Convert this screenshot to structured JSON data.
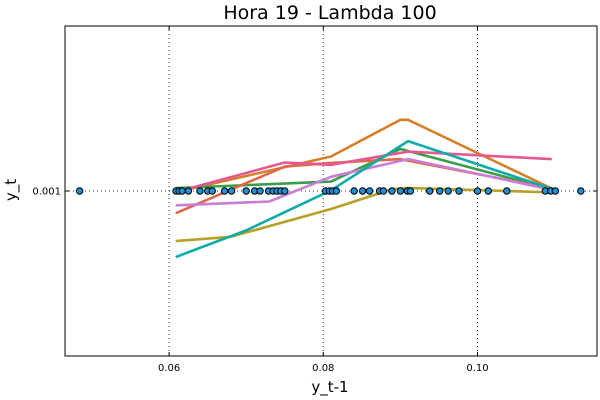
{
  "chart_data": {
    "type": "line",
    "title": "Hora 19 - Lambda 100",
    "xlabel": "y_t-1",
    "ylabel": "y_t",
    "xlim": [
      0.0465,
      0.1155
    ],
    "ylim": [
      0.00056,
      0.00144
    ],
    "grid": {
      "style": "dotted",
      "x_ticks_only": true,
      "y_ticks_only": true
    },
    "x_ticks": [
      0.06,
      0.08,
      0.1
    ],
    "x_tick_labels": [
      "0.06",
      "0.08",
      "0.10"
    ],
    "y_ticks": [
      0.001
    ],
    "y_tick_labels": [
      "0.001"
    ],
    "scatter": {
      "color": "#1f8fd6",
      "y": 0.001,
      "x": [
        0.0484,
        0.0609,
        0.0613,
        0.0617,
        0.0625,
        0.064,
        0.065,
        0.0656,
        0.0672,
        0.0681,
        0.07,
        0.0711,
        0.0718,
        0.0729,
        0.0735,
        0.074,
        0.0745,
        0.075,
        0.0803,
        0.0808,
        0.0812,
        0.0817,
        0.084,
        0.0851,
        0.086,
        0.0873,
        0.0878,
        0.0889,
        0.09,
        0.0909,
        0.0913,
        0.0938,
        0.0951,
        0.0962,
        0.0976,
        0.1,
        0.1014,
        0.1038,
        0.1088,
        0.1095,
        0.1101,
        0.1134
      ]
    },
    "series": [
      {
        "color": "#d4802a",
        "x": [
          0.061,
          0.07,
          0.081,
          0.09,
          0.091,
          0.11
        ],
        "y": [
          0.000998,
          0.00104,
          0.001092,
          0.00119,
          0.00119,
          0.001003
        ]
      },
      {
        "color": "#3a9e48",
        "x": [
          0.061,
          0.081,
          0.09,
          0.11
        ],
        "y": [
          0.001008,
          0.001025,
          0.001112,
          0.001003
        ]
      },
      {
        "color": "#e06848",
        "x": [
          0.061,
          0.075,
          0.081,
          0.09,
          0.11
        ],
        "y": [
          0.000942,
          0.001065,
          0.001075,
          0.001085,
          0.001005
        ]
      },
      {
        "color": "#b8a028",
        "x": [
          0.061,
          0.068,
          0.081,
          0.089,
          0.091,
          0.11
        ],
        "y": [
          0.000867,
          0.000878,
          0.000952,
          0.001005,
          0.001008,
          0.000996
        ]
      },
      {
        "color": "#c87ed6",
        "x": [
          0.061,
          0.073,
          0.081,
          0.091,
          0.11
        ],
        "y": [
          0.000962,
          0.000972,
          0.001038,
          0.001085,
          0.001002
        ]
      },
      {
        "color": "#e85890",
        "x": [
          0.061,
          0.075,
          0.081,
          0.091,
          0.1095
        ],
        "y": [
          0.000998,
          0.001076,
          0.00107,
          0.001105,
          0.001085
        ]
      },
      {
        "color": "#10aaa8",
        "x": [
          0.061,
          0.07,
          0.081,
          0.091,
          0.11
        ],
        "y": [
          0.000825,
          0.000895,
          0.001002,
          0.001133,
          0.001003
        ]
      }
    ]
  }
}
